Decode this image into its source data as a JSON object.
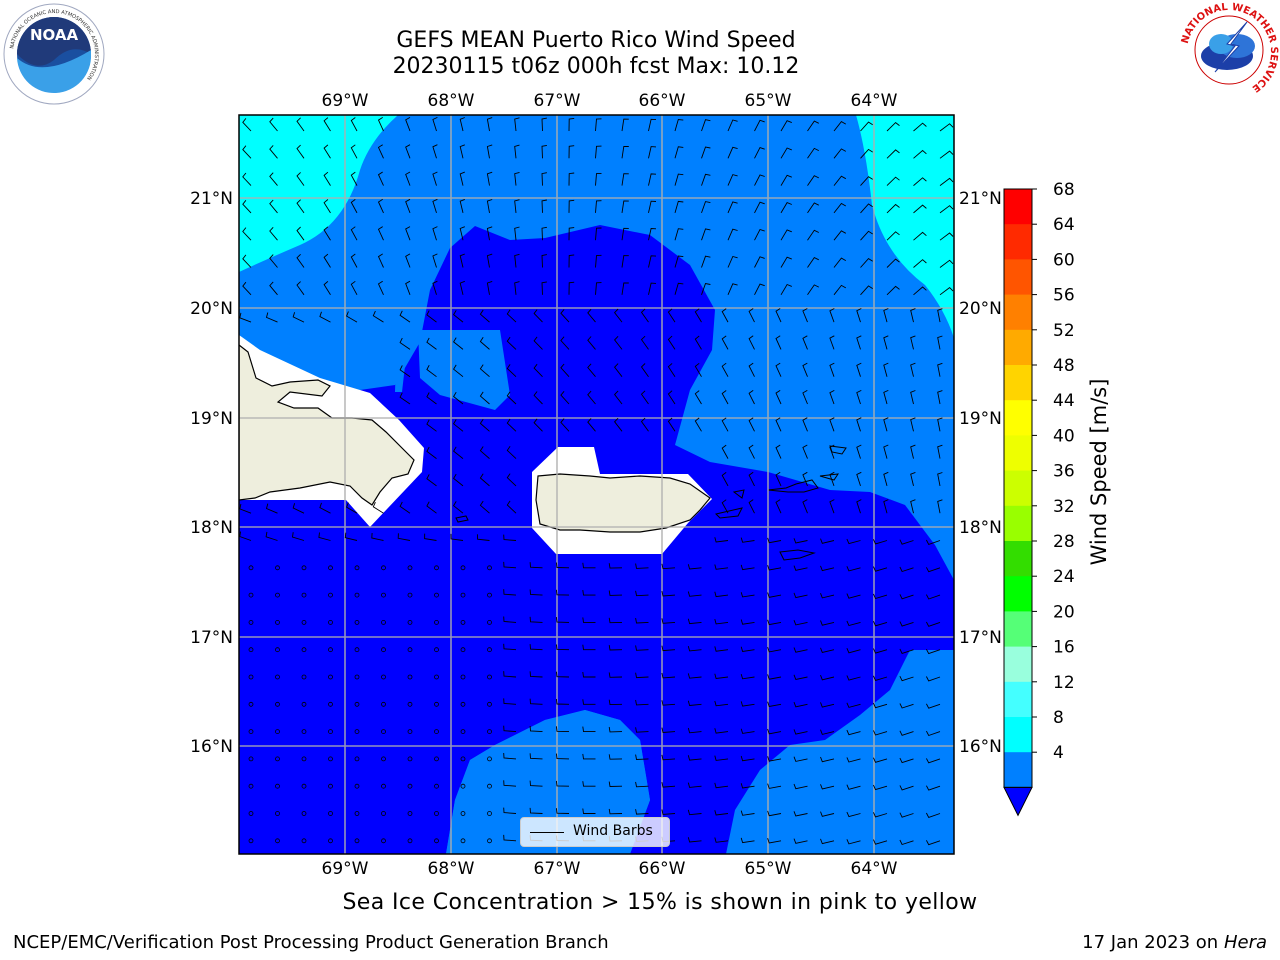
{
  "header": {
    "title_line1": "GEFS MEAN Puerto Rico Wind Speed",
    "title_line2": "20230115 t06z 000h fcst   Max: 10.12"
  },
  "logos": {
    "noaa": {
      "text": "NOAA",
      "ring_text": "NATIONAL OCEANIC AND ATMOSPHERIC ADMINISTRATION",
      "bottom_text": "U.S. DEPARTMENT OF COMMERCE"
    },
    "nws": {
      "ring_text": "NATIONAL WEATHER SERVICE"
    }
  },
  "map": {
    "lon_ticks": [
      "69°W",
      "68°W",
      "67°W",
      "66°W",
      "65°W",
      "64°W"
    ],
    "lat_ticks": [
      "21°N",
      "20°N",
      "19°N",
      "18°N",
      "17°N",
      "16°N"
    ],
    "extent": {
      "lon_min": -69.99,
      "lon_max": -63.26,
      "lat_min": 15.0,
      "lat_max": 21.75
    },
    "gridlines": true,
    "legend": {
      "label": "Wind Barbs",
      "placement": "bottom-center"
    },
    "colors": {
      "4-8": "#0000ff",
      "8-12": "#0080ff",
      "12-16": "#00ffff",
      "land": "#eeeedd",
      "masked": "#ffffff"
    }
  },
  "colorbar": {
    "label": "Wind Speed [m/s]",
    "ticks": [
      "68",
      "64",
      "60",
      "56",
      "52",
      "48",
      "44",
      "40",
      "36",
      "32",
      "28",
      "24",
      "20",
      "16",
      "12",
      "8",
      "4"
    ],
    "colors": [
      "#ff0000",
      "#ff2a00",
      "#ff5500",
      "#ff8000",
      "#ffaa00",
      "#ffd400",
      "#ffff00",
      "#eeff00",
      "#ccff00",
      "#99ff00",
      "#33dd00",
      "#00ff00",
      "#55ff77",
      "#99ffdd",
      "#44ffff",
      "#00ffff",
      "#0080ff"
    ],
    "extend_color": "#0000ff"
  },
  "caption": "Sea Ice Concentration > 15% is shown in pink to yellow",
  "footer": {
    "left": "NCEP/EMC/Verification Post Processing Product Generation Branch",
    "right_prefix": "17 Jan 2023 on ",
    "right_host": "Hera"
  }
}
